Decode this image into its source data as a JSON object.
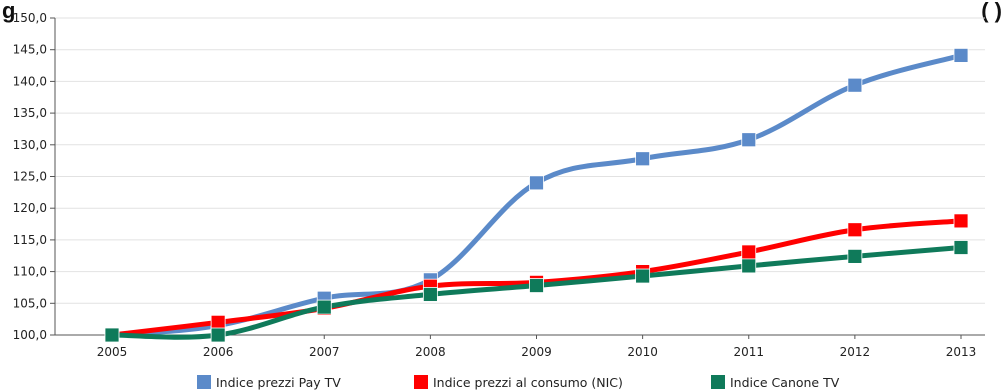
{
  "header": {
    "left_fragment": "g",
    "right_fragment": "(         )"
  },
  "chart_data": {
    "type": "line",
    "x": [
      "2005",
      "2006",
      "2007",
      "2008",
      "2009",
      "2010",
      "2011",
      "2012",
      "2013"
    ],
    "ylim": [
      100,
      150
    ],
    "y_ticks": [
      "100,0",
      "105,0",
      "110,0",
      "115,0",
      "120,0",
      "125,0",
      "130,0",
      "135,0",
      "140,0",
      "145,0",
      "150,0"
    ],
    "grid": true,
    "legend_position": "bottom",
    "series": [
      {
        "name": "Indice prezzi Pay TV",
        "color": "#5b8ac9",
        "values": [
          100.0,
          101.5,
          105.8,
          108.7,
          124.0,
          127.8,
          130.8,
          139.4,
          144.1
        ]
      },
      {
        "name": "Indice prezzi al consumo (NIC)",
        "color": "#ff0000",
        "values": [
          100.0,
          102.0,
          104.2,
          107.7,
          108.3,
          110.0,
          113.1,
          116.6,
          118.0
        ]
      },
      {
        "name": "Indice Canone TV",
        "color": "#0f7a5a",
        "values": [
          100.0,
          100.0,
          104.4,
          106.4,
          107.8,
          109.3,
          110.9,
          112.4,
          113.8
        ]
      }
    ]
  }
}
